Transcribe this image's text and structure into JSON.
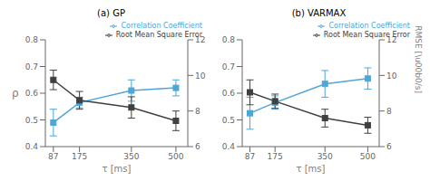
{
  "chart_data": [
    {
      "type": "line",
      "title": "(a) GP",
      "xlabel": "τ [ms]",
      "ylabel": "ρ",
      "x": [
        87,
        175,
        350,
        500
      ],
      "xlim": [
        60,
        540
      ],
      "xticks": [
        87,
        175,
        350,
        500
      ],
      "ylim": [
        0.4,
        0.8
      ],
      "yticks": [
        0.4,
        0.5,
        0.6,
        0.7,
        0.8
      ],
      "y2lim": [
        6,
        12
      ],
      "y2ticks": [
        6,
        8,
        10,
        12
      ],
      "legend": "upper right",
      "grid": false,
      "series": [
        {
          "name": "Correlation Coefficient",
          "color": "#4da6d8",
          "marker": "square",
          "values": [
            0.49,
            0.565,
            0.61,
            0.62
          ],
          "errors": [
            0.05,
            0.02,
            0.04,
            0.03
          ]
        },
        {
          "name": "Root Mean Square Error",
          "color": "#404040",
          "marker": "square",
          "axis": "y2",
          "values": [
            9.75,
            8.6,
            8.2,
            7.45
          ],
          "errors": [
            0.55,
            0.5,
            0.6,
            0.55
          ]
        }
      ]
    },
    {
      "type": "line",
      "title": "(b) VARMAX",
      "xlabel": "τ [ms]",
      "y2label": "RMSE [\\u00b0/s]",
      "x": [
        87,
        175,
        350,
        500
      ],
      "xlim": [
        60,
        540
      ],
      "xticks": [
        87,
        175,
        350,
        500
      ],
      "ylim": [
        0.4,
        0.8
      ],
      "yticks": [
        0.4,
        0.5,
        0.6,
        0.7,
        0.8
      ],
      "y2lim": [
        6,
        12
      ],
      "y2ticks": [
        6,
        8,
        10,
        12
      ],
      "legend": "upper right",
      "grid": false,
      "series": [
        {
          "name": "Correlation Coefficient",
          "color": "#4da6d8",
          "marker": "square",
          "values": [
            0.525,
            0.565,
            0.635,
            0.655
          ],
          "errors": [
            0.06,
            0.025,
            0.05,
            0.04
          ]
        },
        {
          "name": "Root Mean Square Error",
          "color": "#404040",
          "marker": "square",
          "axis": "y2",
          "values": [
            9.05,
            8.55,
            7.6,
            7.2
          ],
          "errors": [
            0.7,
            0.4,
            0.5,
            0.45
          ]
        }
      ]
    }
  ]
}
